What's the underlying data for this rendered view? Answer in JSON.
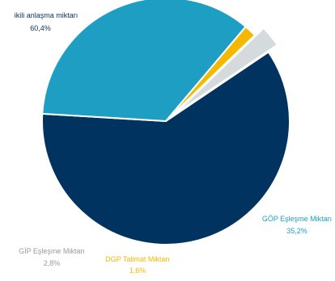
{
  "chart_data": {
    "type": "pie",
    "title": "",
    "legend": "none",
    "slices": [
      {
        "label": "ikili anlaşma miktarı",
        "value": 60.4,
        "value_text": "60,4%",
        "color": "#00335f",
        "exploded": false
      },
      {
        "label": "GÖP Eşleşme Miktarı",
        "value": 35.2,
        "value_text": "35,2%",
        "color": "#1e9ec3",
        "exploded": false
      },
      {
        "label": "DGP Talimat Miktarı",
        "value": 1.6,
        "value_text": "1,6%",
        "color": "#f5b800",
        "exploded": false
      },
      {
        "label": "GİP Eşleşme Miktarı",
        "value": 2.8,
        "value_text": "2,8%",
        "color": "#d5dadd",
        "exploded": true
      }
    ],
    "label_colors": {
      "ikili anlaşma miktarı": "#00335f",
      "GÖP Eşleşme Miktarı": "#1e9ec3",
      "DGP Talimat Miktarı": "#f5b800",
      "GİP Eşleşme Miktarı": "#9a9a9a"
    }
  }
}
